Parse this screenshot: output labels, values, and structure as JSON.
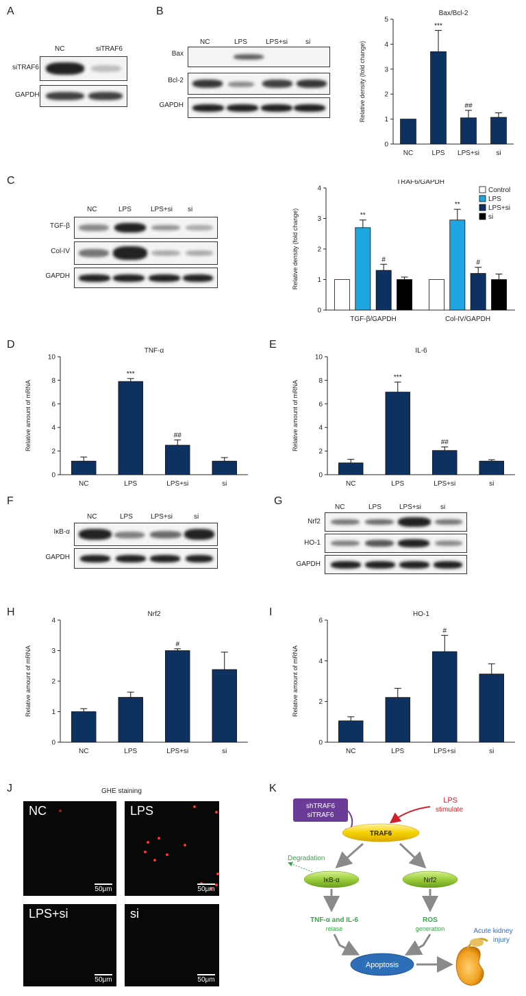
{
  "panels": {
    "A": {
      "letter": "A",
      "lanes": [
        "NC",
        "siTRAF6"
      ],
      "rows": [
        "siTRAF6",
        "GAPDH"
      ]
    },
    "B": {
      "letter": "B",
      "lanes": [
        "NC",
        "LPS",
        "LPS+si",
        "si"
      ],
      "rows": [
        "Bax",
        "Bcl-2",
        "GAPDH"
      ]
    },
    "C": {
      "letter": "C",
      "lanes": [
        "NC",
        "LPS",
        "LPS+si",
        "si"
      ],
      "rows": [
        "TGF-β",
        "Col-IV",
        "GAPDH"
      ]
    },
    "D": {
      "letter": "D"
    },
    "E": {
      "letter": "E"
    },
    "F": {
      "letter": "F",
      "lanes": [
        "NC",
        "LPS",
        "LPS+si",
        "si"
      ],
      "rows": [
        "IκB-α",
        "GAPDH"
      ]
    },
    "G": {
      "letter": "G",
      "lanes": [
        "NC",
        "LPS",
        "LPS+si",
        "si"
      ],
      "rows": [
        "Nrf2",
        "HO-1",
        "GAPDH"
      ]
    },
    "H": {
      "letter": "H"
    },
    "I": {
      "letter": "I"
    },
    "J": {
      "letter": "J",
      "title": "GHE staining",
      "images": [
        "NC",
        "LPS",
        "LPS+si",
        "si"
      ],
      "scale_label": "50μm"
    },
    "K": {
      "letter": "K",
      "nodes": {
        "inhibitor_line1": "shTRAF6",
        "inhibitor_line2": "siTRAF6",
        "stimulus_line1": "LPS",
        "stimulus_line2": "stimulate",
        "traf6": "TRAF6",
        "degradation": "Degradation",
        "ikb": "IκB-α",
        "nrf2": "Nrf2",
        "cytokine_line1": "TNF-α and IL-6",
        "cytokine_line2": "relase",
        "ros_line1": "ROS",
        "ros_line2": "generation",
        "apoptosis": "Apoptosis",
        "aki_line1": "Acute kidney",
        "aki_line2": "injury"
      }
    }
  },
  "colors": {
    "navy": "#0d3160",
    "light_blue": "#1fa6e0",
    "black": "#000000",
    "white": "#ffffff",
    "green_text": "#3aa54a",
    "red_text": "#d0202a",
    "purple": "#6a3b97",
    "traf6_fill": "#f6d200",
    "node_green": "#9ccd3c",
    "apoptosis_blue": "#2c6fb8"
  },
  "chart_data": [
    {
      "id": "B",
      "type": "bar",
      "title": "Bax/Bcl-2",
      "ylabel": "Relative density (fold change)",
      "xlabel": "",
      "categories": [
        "NC",
        "LPS",
        "LPS+si",
        "si"
      ],
      "values": [
        1.0,
        3.7,
        1.05,
        1.07
      ],
      "errors": [
        0,
        0.85,
        0.3,
        0.18
      ],
      "annotations": [
        "",
        "***",
        "##",
        ""
      ],
      "ylim": [
        0,
        5
      ],
      "yticks": [
        0,
        1,
        2,
        3,
        4,
        5
      ]
    },
    {
      "id": "C",
      "type": "bar",
      "title": "TRAF6/GAPDH",
      "ylabel": "Relative density (fold change)",
      "xlabel": "",
      "categories": [
        "TGF-β/GAPDH",
        "Col-IV/GAPDH"
      ],
      "series": [
        {
          "name": "Control",
          "values": [
            1.0,
            1.0
          ],
          "errors": [
            0,
            0
          ],
          "annotations": [
            "",
            ""
          ]
        },
        {
          "name": "LPS",
          "values": [
            2.7,
            2.95
          ],
          "errors": [
            0.25,
            0.35
          ],
          "annotations": [
            "**",
            "**"
          ]
        },
        {
          "name": "LPS+si",
          "values": [
            1.3,
            1.2
          ],
          "errors": [
            0.2,
            0.2
          ],
          "annotations": [
            "#",
            "#"
          ]
        },
        {
          "name": "si",
          "values": [
            1.0,
            1.0
          ],
          "errors": [
            0.08,
            0.18
          ],
          "annotations": [
            "",
            ""
          ]
        }
      ],
      "ylim": [
        0,
        4
      ],
      "yticks": [
        0,
        1,
        2,
        3,
        4
      ],
      "legend": "top-right"
    },
    {
      "id": "D",
      "type": "bar",
      "title": "TNF-α",
      "ylabel": "Relative amount of mRNA",
      "xlabel": "",
      "categories": [
        "NC",
        "LPS",
        "LPS+si",
        "si"
      ],
      "values": [
        1.15,
        7.9,
        2.5,
        1.15
      ],
      "errors": [
        0.35,
        0.25,
        0.45,
        0.3
      ],
      "annotations": [
        "",
        "***",
        "##",
        ""
      ],
      "ylim": [
        0,
        10
      ],
      "yticks": [
        0,
        2,
        4,
        6,
        8,
        10
      ]
    },
    {
      "id": "E",
      "type": "bar",
      "title": "IL-6",
      "ylabel": "Relative amount of mRNA",
      "xlabel": "",
      "categories": [
        "NC",
        "LPS",
        "LPS+si",
        "si"
      ],
      "values": [
        1.0,
        7.0,
        2.05,
        1.15
      ],
      "errors": [
        0.3,
        0.85,
        0.3,
        0.12
      ],
      "annotations": [
        "",
        "***",
        "##",
        ""
      ],
      "ylim": [
        0,
        10
      ],
      "yticks": [
        0,
        2,
        4,
        6,
        8,
        10
      ]
    },
    {
      "id": "H",
      "type": "bar",
      "title": "Nrf2",
      "ylabel": "Relative amount of mRNA",
      "xlabel": "",
      "categories": [
        "NC",
        "LPS",
        "LPS+si",
        "si"
      ],
      "values": [
        1.0,
        1.47,
        3.0,
        2.38
      ],
      "errors": [
        0.1,
        0.17,
        0.06,
        0.57
      ],
      "annotations": [
        "",
        "",
        "#",
        ""
      ],
      "ylim": [
        0,
        4
      ],
      "yticks": [
        0,
        1,
        2,
        3,
        4
      ]
    },
    {
      "id": "I",
      "type": "bar",
      "title": "HO-1",
      "ylabel": "Relative amount of mRNA",
      "xlabel": "",
      "categories": [
        "NC",
        "LPS",
        "LPS+si",
        "si"
      ],
      "values": [
        1.05,
        2.2,
        4.45,
        3.35
      ],
      "errors": [
        0.2,
        0.45,
        0.8,
        0.5
      ],
      "annotations": [
        "",
        "",
        "#",
        ""
      ],
      "ylim": [
        0,
        6
      ],
      "yticks": [
        0,
        2,
        4,
        6
      ]
    }
  ]
}
